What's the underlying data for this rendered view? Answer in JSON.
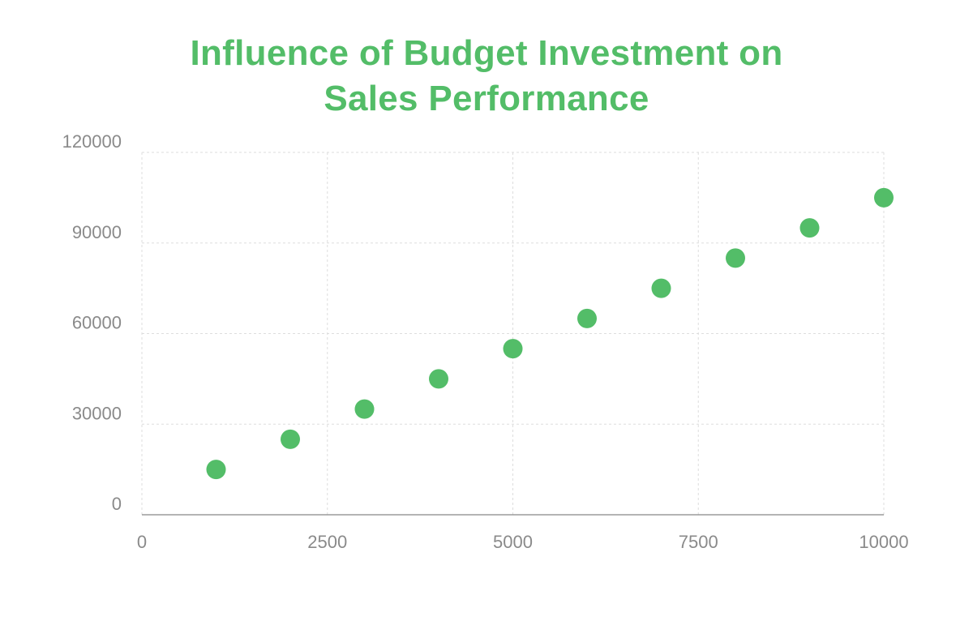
{
  "chart_data": {
    "type": "scatter",
    "title_lines": [
      "Influence of Budget Investment on",
      "Sales Performance"
    ],
    "xlabel": "",
    "ylabel": "",
    "xlim": [
      0,
      10000
    ],
    "ylim": [
      0,
      120000
    ],
    "x_ticks": [
      0,
      2500,
      5000,
      7500,
      10000
    ],
    "y_ticks": [
      0,
      30000,
      60000,
      90000,
      120000
    ],
    "grid": true,
    "series": [
      {
        "x": [
          1000,
          2000,
          3000,
          4000,
          5000,
          6000,
          7000,
          8000,
          9000,
          10000
        ],
        "y": [
          15000,
          25000,
          35000,
          45000,
          55000,
          65000,
          75000,
          85000,
          95000,
          105000
        ]
      }
    ]
  },
  "colors": {
    "accent": "#53bd68",
    "grid": "#dddddd",
    "axis": "#888888",
    "tick_text": "#8a8a8a"
  }
}
